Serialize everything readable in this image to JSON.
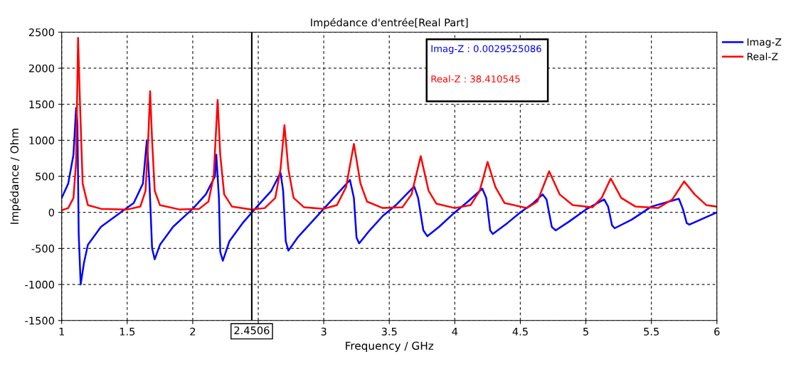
{
  "chart_data": {
    "type": "line",
    "title": "Impédance d'entrée[Real Part]",
    "xlabel": "Frequency / GHz",
    "ylabel": "Impédance / Ohm",
    "xlim": [
      1,
      6
    ],
    "xticks": [
      1,
      1.5,
      2,
      {
        "value": 2.5,
        "label": null
      },
      3,
      3.5,
      4,
      4.5,
      5,
      5.5,
      6
    ],
    "ylim": [
      -1500,
      2500
    ],
    "yticks": [
      -1500,
      -1000,
      -500,
      0,
      500,
      1000,
      1500,
      2000,
      2500
    ],
    "grid": true,
    "legend": "top right",
    "line_style": "solid",
    "ref_lines": [
      {
        "axis": "x",
        "value": 2.4506,
        "label": "2.4506",
        "color": "#000000"
      }
    ],
    "annotations": [
      "Imag-Z : 0.0029525086",
      "Real-Z : 38.410545"
    ],
    "series": [
      {
        "name": "Imag-Z",
        "color": "#0000ff",
        "x": [
          1.0,
          1.05,
          1.09,
          1.11,
          1.12,
          1.13,
          1.145,
          1.17,
          1.2,
          1.3,
          1.45,
          1.55,
          1.62,
          1.65,
          1.67,
          1.69,
          1.71,
          1.75,
          1.85,
          2.0,
          2.1,
          2.17,
          2.18,
          2.2,
          2.21,
          2.23,
          2.28,
          2.38,
          2.5,
          2.6,
          2.67,
          2.69,
          2.71,
          2.73,
          2.8,
          2.9,
          3.0,
          3.1,
          3.2,
          3.23,
          3.25,
          3.27,
          3.35,
          3.45,
          3.55,
          3.69,
          3.72,
          3.76,
          3.79,
          3.88,
          4.0,
          4.1,
          4.21,
          4.24,
          4.27,
          4.29,
          4.4,
          4.5,
          4.6,
          4.67,
          4.7,
          4.74,
          4.77,
          4.87,
          5.0,
          5.14,
          5.17,
          5.2,
          5.22,
          5.35,
          5.5,
          5.71,
          5.74,
          5.77,
          5.79,
          5.9,
          6.0
        ],
        "values": [
          200,
          400,
          800,
          1450,
          1250,
          -300,
          -1000,
          -700,
          -450,
          -200,
          0,
          130,
          400,
          1000,
          400,
          -500,
          -650,
          -450,
          -200,
          50,
          250,
          500,
          800,
          200,
          -550,
          -670,
          -400,
          -150,
          100,
          300,
          550,
          300,
          -400,
          -530,
          -350,
          -150,
          50,
          250,
          450,
          200,
          -350,
          -430,
          -250,
          -50,
          100,
          360,
          200,
          -250,
          -330,
          -200,
          0,
          150,
          330,
          200,
          -250,
          -300,
          -150,
          0,
          130,
          250,
          180,
          -200,
          -250,
          -130,
          40,
          180,
          80,
          -180,
          -220,
          -100,
          80,
          190,
          50,
          -150,
          -170,
          -80,
          0
        ]
      },
      {
        "name": "Real-Z",
        "color": "#ff0000",
        "x": [
          1.0,
          1.05,
          1.09,
          1.11,
          1.125,
          1.14,
          1.16,
          1.2,
          1.3,
          1.5,
          1.6,
          1.64,
          1.66,
          1.675,
          1.69,
          1.71,
          1.75,
          1.9,
          2.05,
          2.12,
          2.16,
          2.19,
          2.21,
          2.24,
          2.3,
          2.45,
          2.55,
          2.63,
          2.67,
          2.7,
          2.73,
          2.77,
          2.85,
          3.0,
          3.1,
          3.17,
          3.23,
          3.28,
          3.33,
          3.45,
          3.6,
          3.67,
          3.74,
          3.8,
          3.86,
          4.0,
          4.12,
          4.19,
          4.25,
          4.31,
          4.38,
          4.55,
          4.63,
          4.72,
          4.8,
          4.9,
          5.05,
          5.12,
          5.19,
          5.27,
          5.38,
          5.55,
          5.66,
          5.75,
          5.83,
          5.92,
          6.0
        ],
        "values": [
          30,
          60,
          200,
          700,
          2420,
          1500,
          400,
          100,
          50,
          40,
          80,
          300,
          1000,
          1680,
          1000,
          300,
          100,
          40,
          50,
          150,
          500,
          1560,
          800,
          250,
          80,
          40,
          60,
          200,
          600,
          1210,
          600,
          200,
          70,
          50,
          100,
          350,
          950,
          400,
          150,
          60,
          70,
          250,
          780,
          300,
          120,
          60,
          100,
          300,
          700,
          350,
          130,
          60,
          150,
          570,
          250,
          100,
          70,
          200,
          470,
          200,
          80,
          60,
          180,
          430,
          250,
          100,
          80
        ]
      }
    ]
  }
}
